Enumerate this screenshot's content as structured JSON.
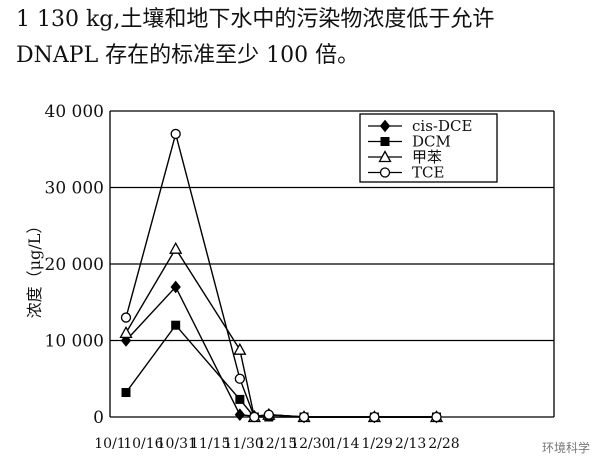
{
  "intro": {
    "line1": "1 130 kg,土壤和地下水中的污染物浓度低于允许",
    "line2": "DNAPL 存在的标准至少 100 倍。"
  },
  "chart_data": {
    "type": "line",
    "ylabel": "浓度（μg/L）",
    "ylim": [
      0,
      40000
    ],
    "yticks": [
      0,
      10000,
      20000,
      30000,
      40000
    ],
    "ytick_labels": [
      "0",
      "10 000",
      "20 000",
      "30 000",
      "40 000"
    ],
    "grid": "horizontal",
    "legend_position": "top-right",
    "categories": [
      "10/1",
      "10/16",
      "10/31",
      "11/15",
      "11/30",
      "12/15",
      "12/30",
      "1/14",
      "1/29",
      "2/13",
      "2/28"
    ],
    "series": [
      {
        "name": "cis-DCE",
        "marker": "diamond-filled",
        "points": [
          [
            "10/1",
            10000
          ],
          [
            "10/25",
            17000
          ],
          [
            "11/25",
            300
          ],
          [
            "12/2",
            100
          ],
          [
            "12/9",
            300
          ],
          [
            "12/26",
            0
          ],
          [
            "1/29",
            0
          ],
          [
            "2/28",
            0
          ]
        ]
      },
      {
        "name": "DCM",
        "marker": "square-filled",
        "points": [
          [
            "10/1",
            3200
          ],
          [
            "10/25",
            12000
          ],
          [
            "11/25",
            2300
          ],
          [
            "12/2",
            0
          ],
          [
            "12/9",
            0
          ],
          [
            "12/26",
            0
          ],
          [
            "1/29",
            0
          ],
          [
            "2/28",
            0
          ]
        ]
      },
      {
        "name": "甲苯",
        "marker": "triangle-open",
        "points": [
          [
            "10/1",
            11000
          ],
          [
            "10/25",
            22000
          ],
          [
            "11/25",
            8800
          ],
          [
            "12/2",
            0
          ],
          [
            "12/9",
            300
          ],
          [
            "12/26",
            0
          ],
          [
            "1/29",
            0
          ],
          [
            "2/28",
            0
          ]
        ]
      },
      {
        "name": "TCE",
        "marker": "circle-open",
        "points": [
          [
            "10/1",
            13000
          ],
          [
            "10/25",
            37000
          ],
          [
            "11/25",
            5000
          ],
          [
            "12/2",
            0
          ],
          [
            "12/9",
            300
          ],
          [
            "12/26",
            0
          ],
          [
            "1/29",
            0
          ],
          [
            "2/28",
            0
          ]
        ]
      }
    ]
  },
  "watermark": "环境科学"
}
